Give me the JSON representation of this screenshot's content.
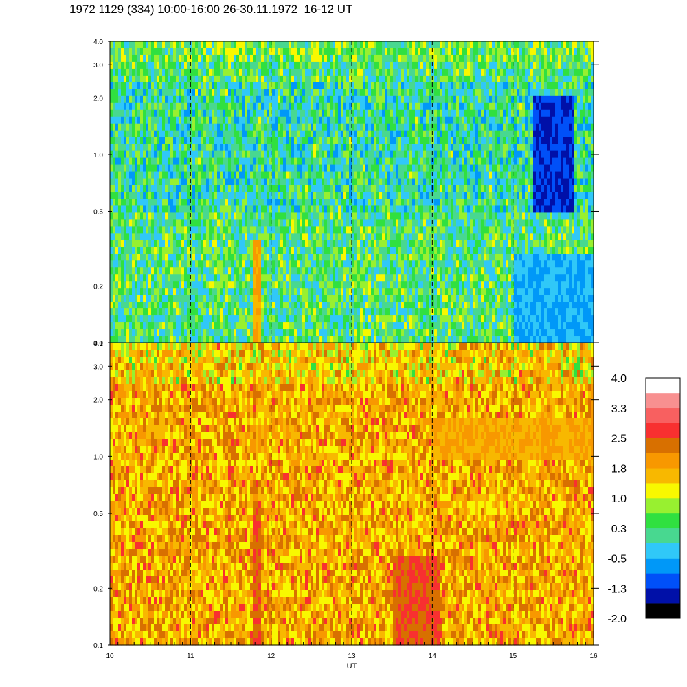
{
  "title": "1972 1129 (334) 10:00-16:00 26-30.11.1972  16-12 UT",
  "chart_data": {
    "type": "heatmap",
    "xlabel": "UT",
    "xlim": [
      10,
      16
    ],
    "x_ticks": [
      10,
      11,
      12,
      13,
      14,
      15,
      16
    ],
    "x_tick_labels": [
      "10",
      "11",
      "12",
      "13",
      "14",
      "15",
      "16"
    ],
    "dashed_time_markers": [
      11,
      12,
      13,
      14,
      15
    ],
    "y_scale": "log",
    "y_ticks": [
      0.1,
      0.2,
      0.5,
      1.0,
      2.0,
      3.0,
      4.0
    ],
    "y_tick_labels": [
      "0.1",
      "0.2",
      "0.5",
      "1.0",
      "2.0",
      "3.0",
      "4.0"
    ],
    "panels": [
      {
        "name": "upper",
        "ylim": [
          0.1,
          4.0
        ],
        "dominant_level": 0.3,
        "features": [
          {
            "x": [
              11.78,
              11.88
            ],
            "y": [
              0.1,
              0.35
            ],
            "level": 1.8
          },
          {
            "x": [
              15.25,
              15.75
            ],
            "y": [
              0.5,
              2.0
            ],
            "level": -1.3
          },
          {
            "x": [
              15.0,
              16.0
            ],
            "y": [
              0.1,
              0.3
            ],
            "level": -0.5
          }
        ]
      },
      {
        "name": "lower",
        "ylim": [
          0.1,
          4.0
        ],
        "dominant_level": 1.8,
        "features": [
          {
            "x": [
              11.78,
              11.88
            ],
            "y": [
              0.1,
              0.6
            ],
            "level": 2.5
          },
          {
            "x": [
              13.5,
              14.1
            ],
            "y": [
              0.1,
              0.3
            ],
            "level": 2.5
          },
          {
            "x": [
              14.0,
              16.0
            ],
            "y": [
              1.0,
              1.6
            ],
            "level": 1.8
          }
        ]
      }
    ],
    "colorbar": {
      "levels": [
        -2.0,
        -1.65,
        -1.3,
        -0.9,
        -0.5,
        -0.1,
        0.3,
        0.65,
        1.0,
        1.4,
        1.8,
        2.15,
        2.5,
        2.9,
        3.3,
        3.65,
        4.0
      ],
      "colors": [
        "#000000",
        "#0010a8",
        "#0050f8",
        "#0098f8",
        "#30c8f8",
        "#48d890",
        "#30e040",
        "#98f030",
        "#f8f800",
        "#f8b800",
        "#f89800",
        "#d87000",
        "#f83030",
        "#f86060",
        "#f89090",
        "#ffffff"
      ],
      "labels": [
        "4.0",
        "3.3",
        "2.5",
        "1.8",
        "1.0",
        "0.3",
        "-0.5",
        "-1.3",
        "-2.0"
      ]
    }
  }
}
